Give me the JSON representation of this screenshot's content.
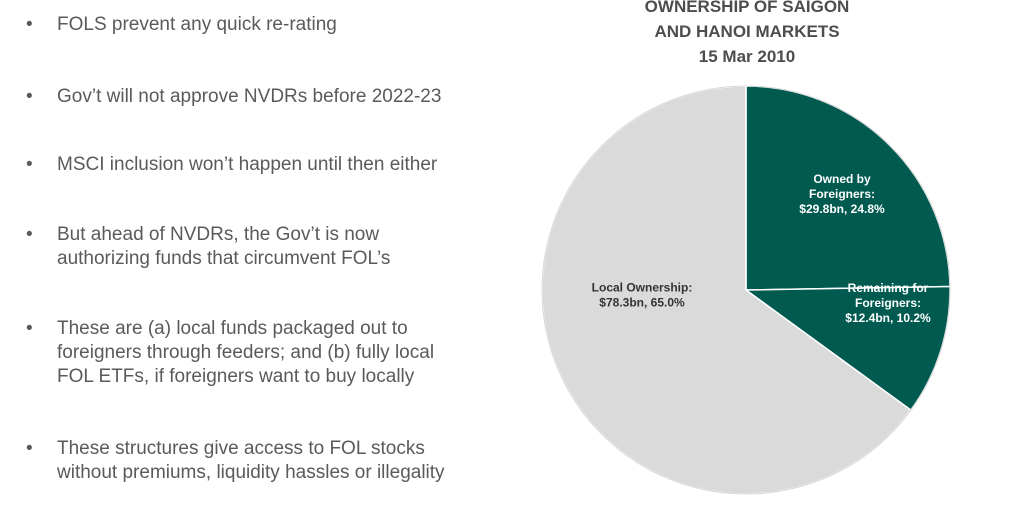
{
  "bullets": [
    {
      "text": "FOLS prevent any quick re-rating"
    },
    {
      "text": "Gov’t will not approve NVDRs before 2022-23"
    },
    {
      "text": "MSCI inclusion won’t happen until then either"
    },
    {
      "text": "But ahead of NVDRs, the Gov’t is now\nauthorizing funds that circumvent FOL’s"
    },
    {
      "text": "These are (a) local funds packaged out to\nforeigners through feeders; and (b) fully local\nFOL ETFs, if foreigners want to buy locally"
    },
    {
      "text": "These structures give access to FOL stocks\nwithout premiums, liquidity hassles or illegality"
    }
  ],
  "bullet_symbol": "•",
  "colors": {
    "text": "#5a5a5a",
    "title": "#4d4d4d",
    "local": "#dadada",
    "foreign": "#005a50",
    "edge": "#ffffff"
  },
  "chart_data": {
    "type": "pie",
    "title": [
      "OWNERSHIP OF SAIGON",
      "AND HANOI MARKETS",
      "15 Mar 2010"
    ],
    "start_angle_deg": 0,
    "direction": "clockwise",
    "slices": [
      {
        "name": "Owned by Foreigners",
        "value": 29.8,
        "percent": 24.8,
        "color": "#005a50",
        "label_lines": [
          "Owned by",
          "Foreigners:",
          "$29.8bn, 24.8%"
        ]
      },
      {
        "name": "Remaining for Foreigners",
        "value": 12.4,
        "percent": 10.2,
        "color": "#005a50",
        "label_lines": [
          "Remaining for",
          "Foreigners:",
          "$12.4bn, 10.2%"
        ]
      },
      {
        "name": "Local Ownership",
        "value": 78.3,
        "percent": 65.0,
        "color": "#dadada",
        "label_lines": [
          "Local Ownership:",
          "$78.3bn, 65.0%"
        ]
      }
    ]
  }
}
